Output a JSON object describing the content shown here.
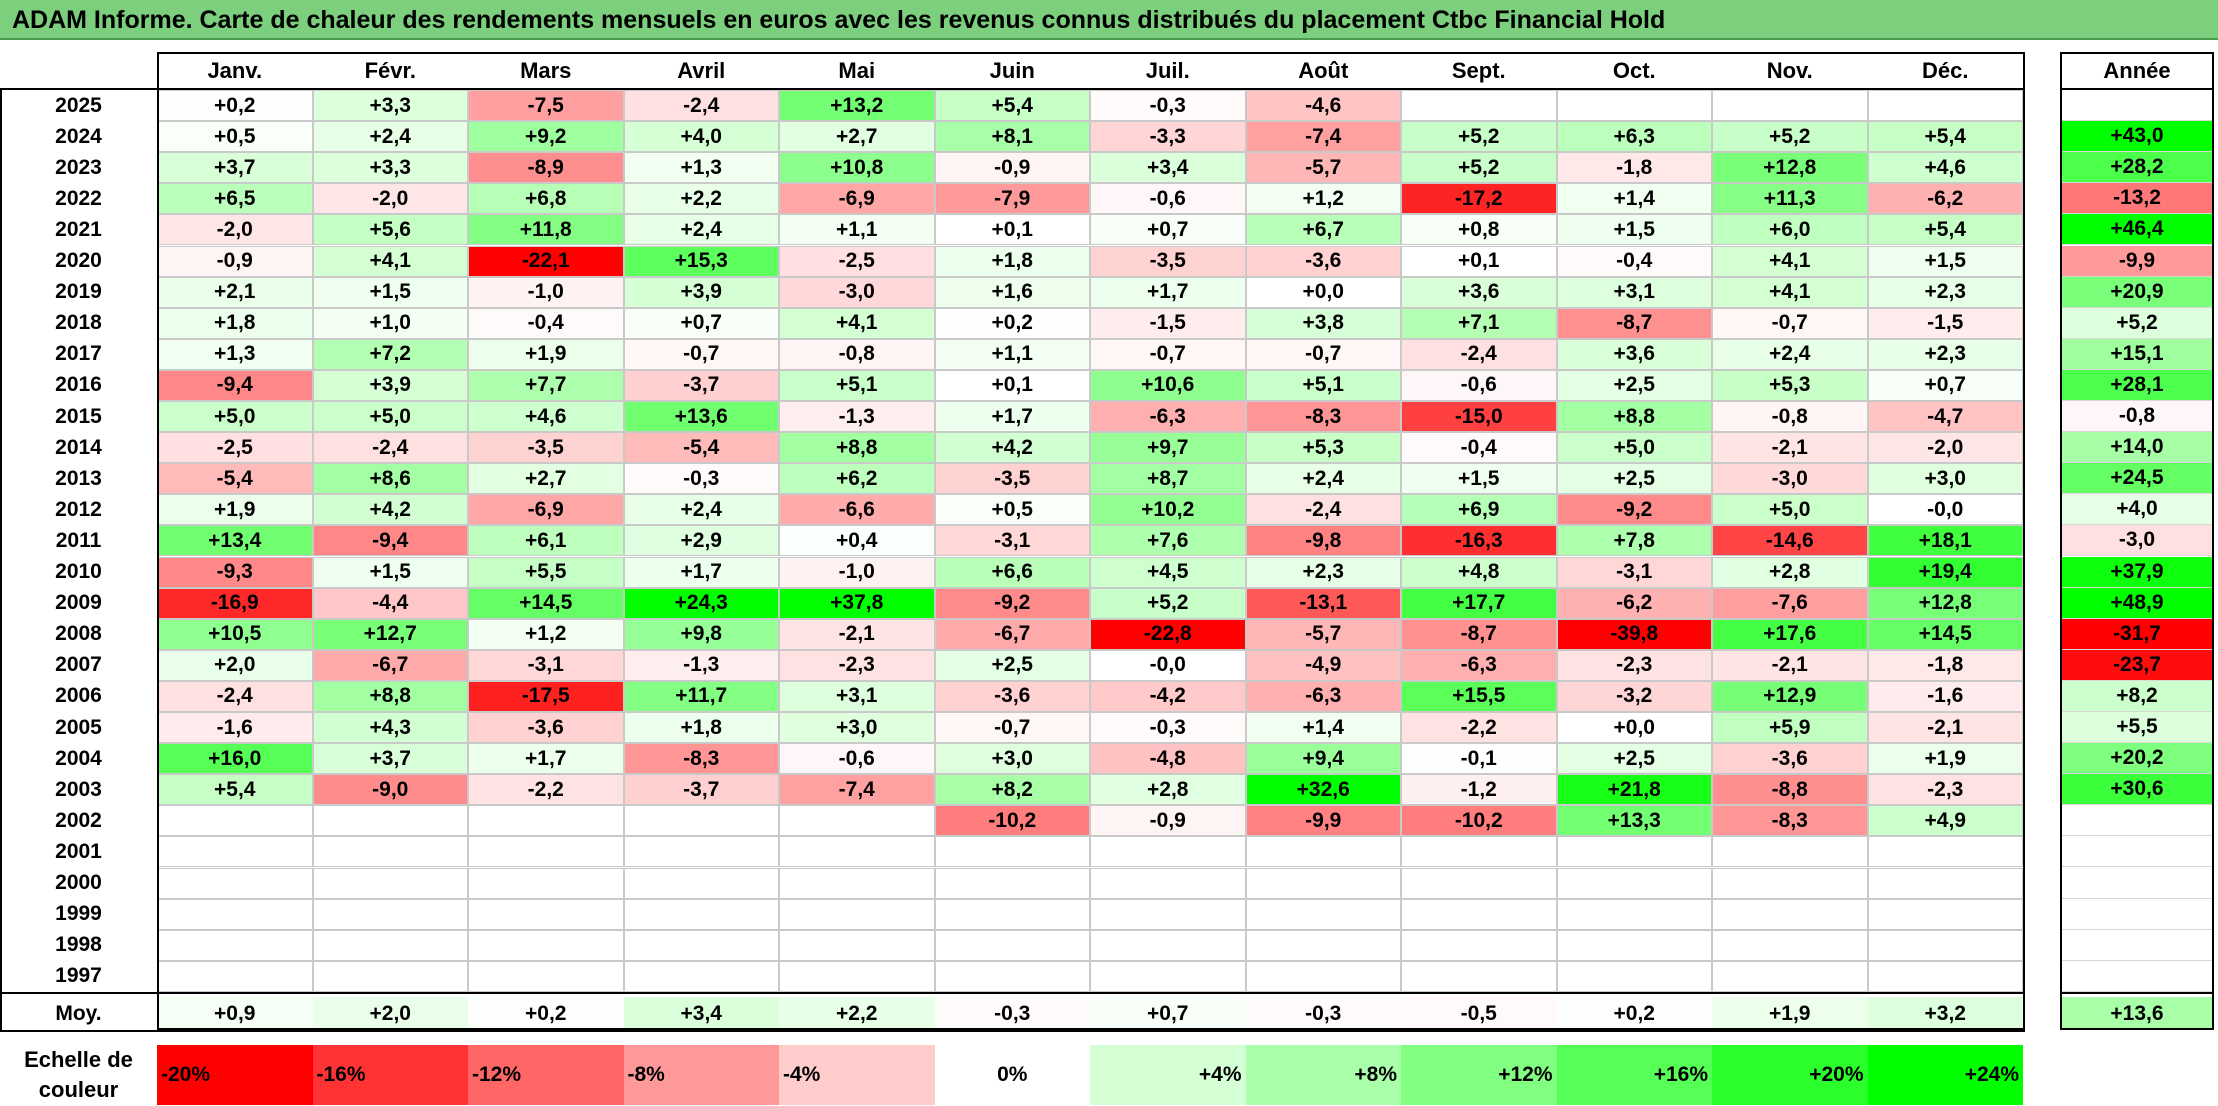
{
  "title": "ADAM Informe. Carte de chaleur des rendements mensuels en euros avec les revenus connus distribués du placement Ctbc Financial Hold",
  "chart_data": {
    "type": "heatmap",
    "months": [
      "Janv.",
      "Févr.",
      "Mars",
      "Avril",
      "Mai",
      "Juin",
      "Juil.",
      "Août",
      "Sept.",
      "Oct.",
      "Nov.",
      "Déc."
    ],
    "annual_header": "Année",
    "rows": [
      {
        "year": "2025",
        "values": [
          "+0,2",
          "+3,3",
          "-7,5",
          "-2,4",
          "+13,2",
          "+5,4",
          "-0,3",
          "-4,6",
          "",
          "",
          "",
          ""
        ],
        "annual": ""
      },
      {
        "year": "2024",
        "values": [
          "+0,5",
          "+2,4",
          "+9,2",
          "+4,0",
          "+2,7",
          "+8,1",
          "-3,3",
          "-7,4",
          "+5,2",
          "+6,3",
          "+5,2",
          "+5,4"
        ],
        "annual": "+43,0"
      },
      {
        "year": "2023",
        "values": [
          "+3,7",
          "+3,3",
          "-8,9",
          "+1,3",
          "+10,8",
          "-0,9",
          "+3,4",
          "-5,7",
          "+5,2",
          "-1,8",
          "+12,8",
          "+4,6"
        ],
        "annual": "+28,2"
      },
      {
        "year": "2022",
        "values": [
          "+6,5",
          "-2,0",
          "+6,8",
          "+2,2",
          "-6,9",
          "-7,9",
          "-0,6",
          "+1,2",
          "-17,2",
          "+1,4",
          "+11,3",
          "-6,2"
        ],
        "annual": "-13,2"
      },
      {
        "year": "2021",
        "values": [
          "-2,0",
          "+5,6",
          "+11,8",
          "+2,4",
          "+1,1",
          "+0,1",
          "+0,7",
          "+6,7",
          "+0,8",
          "+1,5",
          "+6,0",
          "+5,4"
        ],
        "annual": "+46,4"
      },
      {
        "year": "2020",
        "values": [
          "-0,9",
          "+4,1",
          "-22,1",
          "+15,3",
          "-2,5",
          "+1,8",
          "-3,5",
          "-3,6",
          "+0,1",
          "-0,4",
          "+4,1",
          "+1,5"
        ],
        "annual": "-9,9"
      },
      {
        "year": "2019",
        "values": [
          "+2,1",
          "+1,5",
          "-1,0",
          "+3,9",
          "-3,0",
          "+1,6",
          "+1,7",
          "+0,0",
          "+3,6",
          "+3,1",
          "+4,1",
          "+2,3"
        ],
        "annual": "+20,9"
      },
      {
        "year": "2018",
        "values": [
          "+1,8",
          "+1,0",
          "-0,4",
          "+0,7",
          "+4,1",
          "+0,2",
          "-1,5",
          "+3,8",
          "+7,1",
          "-8,7",
          "-0,7",
          "-1,5"
        ],
        "annual": "+5,2"
      },
      {
        "year": "2017",
        "values": [
          "+1,3",
          "+7,2",
          "+1,9",
          "-0,7",
          "-0,8",
          "+1,1",
          "-0,7",
          "-0,7",
          "-2,4",
          "+3,6",
          "+2,4",
          "+2,3"
        ],
        "annual": "+15,1"
      },
      {
        "year": "2016",
        "values": [
          "-9,4",
          "+3,9",
          "+7,7",
          "-3,7",
          "+5,1",
          "+0,1",
          "+10,6",
          "+5,1",
          "-0,6",
          "+2,5",
          "+5,3",
          "+0,7"
        ],
        "annual": "+28,1"
      },
      {
        "year": "2015",
        "values": [
          "+5,0",
          "+5,0",
          "+4,6",
          "+13,6",
          "-1,3",
          "+1,7",
          "-6,3",
          "-8,3",
          "-15,0",
          "+8,8",
          "-0,8",
          "-4,7"
        ],
        "annual": "-0,8"
      },
      {
        "year": "2014",
        "values": [
          "-2,5",
          "-2,4",
          "-3,5",
          "-5,4",
          "+8,8",
          "+4,2",
          "+9,7",
          "+5,3",
          "-0,4",
          "+5,0",
          "-2,1",
          "-2,0"
        ],
        "annual": "+14,0"
      },
      {
        "year": "2013",
        "values": [
          "-5,4",
          "+8,6",
          "+2,7",
          "-0,3",
          "+6,2",
          "-3,5",
          "+8,7",
          "+2,4",
          "+1,5",
          "+2,5",
          "-3,0",
          "+3,0"
        ],
        "annual": "+24,5"
      },
      {
        "year": "2012",
        "values": [
          "+1,9",
          "+4,2",
          "-6,9",
          "+2,4",
          "-6,6",
          "+0,5",
          "+10,2",
          "-2,4",
          "+6,9",
          "-9,2",
          "+5,0",
          "-0,0"
        ],
        "annual": "+4,0"
      },
      {
        "year": "2011",
        "values": [
          "+13,4",
          "-9,4",
          "+6,1",
          "+2,9",
          "+0,4",
          "-3,1",
          "+7,6",
          "-9,8",
          "-16,3",
          "+7,8",
          "-14,6",
          "+18,1"
        ],
        "annual": "-3,0"
      },
      {
        "year": "2010",
        "values": [
          "-9,3",
          "+1,5",
          "+5,5",
          "+1,7",
          "-1,0",
          "+6,6",
          "+4,5",
          "+2,3",
          "+4,8",
          "-3,1",
          "+2,8",
          "+19,4"
        ],
        "annual": "+37,9"
      },
      {
        "year": "2009",
        "values": [
          "-16,9",
          "-4,4",
          "+14,5",
          "+24,3",
          "+37,8",
          "-9,2",
          "+5,2",
          "-13,1",
          "+17,7",
          "-6,2",
          "-7,6",
          "+12,8"
        ],
        "annual": "+48,9"
      },
      {
        "year": "2008",
        "values": [
          "+10,5",
          "+12,7",
          "+1,2",
          "+9,8",
          "-2,1",
          "-6,7",
          "-22,8",
          "-5,7",
          "-8,7",
          "-39,8",
          "+17,6",
          "+14,5"
        ],
        "annual": "-31,7"
      },
      {
        "year": "2007",
        "values": [
          "+2,0",
          "-6,7",
          "-3,1",
          "-1,3",
          "-2,3",
          "+2,5",
          "-0,0",
          "-4,9",
          "-6,3",
          "-2,3",
          "-2,1",
          "-1,8"
        ],
        "annual": "-23,7"
      },
      {
        "year": "2006",
        "values": [
          "-2,4",
          "+8,8",
          "-17,5",
          "+11,7",
          "+3,1",
          "-3,6",
          "-4,2",
          "-6,3",
          "+15,5",
          "-3,2",
          "+12,9",
          "-1,6"
        ],
        "annual": "+8,2"
      },
      {
        "year": "2005",
        "values": [
          "-1,6",
          "+4,3",
          "-3,6",
          "+1,8",
          "+3,0",
          "-0,7",
          "-0,3",
          "+1,4",
          "-2,2",
          "+0,0",
          "+5,9",
          "-2,1"
        ],
        "annual": "+5,5"
      },
      {
        "year": "2004",
        "values": [
          "+16,0",
          "+3,7",
          "+1,7",
          "-8,3",
          "-0,6",
          "+3,0",
          "-4,8",
          "+9,4",
          "-0,1",
          "+2,5",
          "-3,6",
          "+1,9"
        ],
        "annual": "+20,2"
      },
      {
        "year": "2003",
        "values": [
          "+5,4",
          "-9,0",
          "-2,2",
          "-3,7",
          "-7,4",
          "+8,2",
          "+2,8",
          "+32,6",
          "-1,2",
          "+21,8",
          "-8,8",
          "-2,3"
        ],
        "annual": "+30,6"
      },
      {
        "year": "2002",
        "values": [
          "",
          "",
          "",
          "",
          "",
          "-10,2",
          "-0,9",
          "-9,9",
          "-10,2",
          "+13,3",
          "-8,3",
          "+4,9"
        ],
        "annual": ""
      },
      {
        "year": "2001",
        "values": [
          "",
          "",
          "",
          "",
          "",
          "",
          "",
          "",
          "",
          "",
          "",
          ""
        ],
        "annual": ""
      },
      {
        "year": "2000",
        "values": [
          "",
          "",
          "",
          "",
          "",
          "",
          "",
          "",
          "",
          "",
          "",
          ""
        ],
        "annual": ""
      },
      {
        "year": "1999",
        "values": [
          "",
          "",
          "",
          "",
          "",
          "",
          "",
          "",
          "",
          "",
          "",
          ""
        ],
        "annual": ""
      },
      {
        "year": "1998",
        "values": [
          "",
          "",
          "",
          "",
          "",
          "",
          "",
          "",
          "",
          "",
          "",
          ""
        ],
        "annual": ""
      },
      {
        "year": "1997",
        "values": [
          "",
          "",
          "",
          "",
          "",
          "",
          "",
          "",
          "",
          "",
          "",
          ""
        ],
        "annual": ""
      }
    ],
    "average": {
      "label": "Moy.",
      "values": [
        "+0,9",
        "+2,0",
        "+0,2",
        "+3,4",
        "+2,2",
        "-0,3",
        "+0,7",
        "-0,3",
        "-0,5",
        "+0,2",
        "+1,9",
        "+3,2"
      ],
      "annual": "+13,6"
    },
    "scale": {
      "label_line1": "Echelle de",
      "label_line2": "couleur",
      "items": [
        "-20%",
        "-16%",
        "-12%",
        "-8%",
        "-4%",
        "0%",
        "+4%",
        "+8%",
        "+12%",
        "+16%",
        "+20%",
        "+24%"
      ]
    },
    "colors": {
      "negative_max": "#ff0000",
      "neutral": "#ffffff",
      "positive_max": "#00ff00",
      "title_bg": "#7ccf7c"
    }
  }
}
